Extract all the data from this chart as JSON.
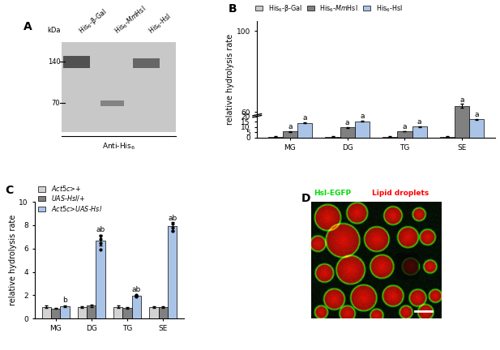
{
  "panel_B": {
    "categories": [
      "MG",
      "DG",
      "TG",
      "SE"
    ],
    "colors": [
      "#c8c8c8",
      "#808080",
      "#aac4e8"
    ],
    "values_bgal": [
      1.0,
      1.0,
      1.0,
      1.0
    ],
    "values_mmhsl": [
      5.7,
      9.5,
      6.0,
      20.0
    ],
    "values_hsl": [
      14.0,
      15.5,
      10.5,
      17.2
    ],
    "err_bgal": [
      0.1,
      0.08,
      0.08,
      0.1
    ],
    "err_mmhsl": [
      0.2,
      0.35,
      0.25,
      0.6
    ],
    "err_hsl": [
      0.25,
      0.35,
      0.3,
      0.25
    ],
    "SE_mmhsl_val": 63.0,
    "SE_mmhsl_err": 1.2,
    "yticks_labels": [
      "0",
      "5",
      "10",
      "15",
      "20",
      "60",
      "100"
    ],
    "yticks_vals": [
      0,
      5,
      10,
      15,
      20,
      60,
      100
    ],
    "ylim": [
      0,
      105
    ],
    "ylabel": "relative hydrolysis rate",
    "annot_mmhsl": [
      "a",
      "a",
      "a",
      "a"
    ],
    "annot_hsl": [
      "a",
      "a",
      "a",
      "a"
    ]
  },
  "panel_C": {
    "categories": [
      "MG",
      "DG",
      "TG",
      "SE"
    ],
    "colors": [
      "#d3d3d3",
      "#808080",
      "#aac4e8"
    ],
    "values_act5c": [
      1.0,
      1.0,
      1.0,
      1.0
    ],
    "values_uas": [
      0.87,
      1.1,
      0.9,
      0.97
    ],
    "values_act5cuas": [
      1.05,
      6.7,
      1.95,
      7.9
    ],
    "err_act5c": [
      0.09,
      0.07,
      0.09,
      0.07
    ],
    "err_uas": [
      0.06,
      0.09,
      0.07,
      0.08
    ],
    "err_act5cuas": [
      0.1,
      0.45,
      0.09,
      0.38
    ],
    "dots_DG": [
      5.9,
      6.5,
      6.8,
      7.1
    ],
    "dots_SE": [
      7.5,
      7.8,
      8.1
    ],
    "dots_TG": [
      1.85,
      1.95,
      2.05
    ],
    "ylim": [
      0,
      10
    ],
    "yticks": [
      0,
      2,
      4,
      6,
      8,
      10
    ],
    "ylabel": "relative hydrolysis rate",
    "annot_MG_blue": "b",
    "annot_DG_blue": "ab",
    "annot_TG_blue": "ab",
    "annot_SE_blue": "ab"
  }
}
